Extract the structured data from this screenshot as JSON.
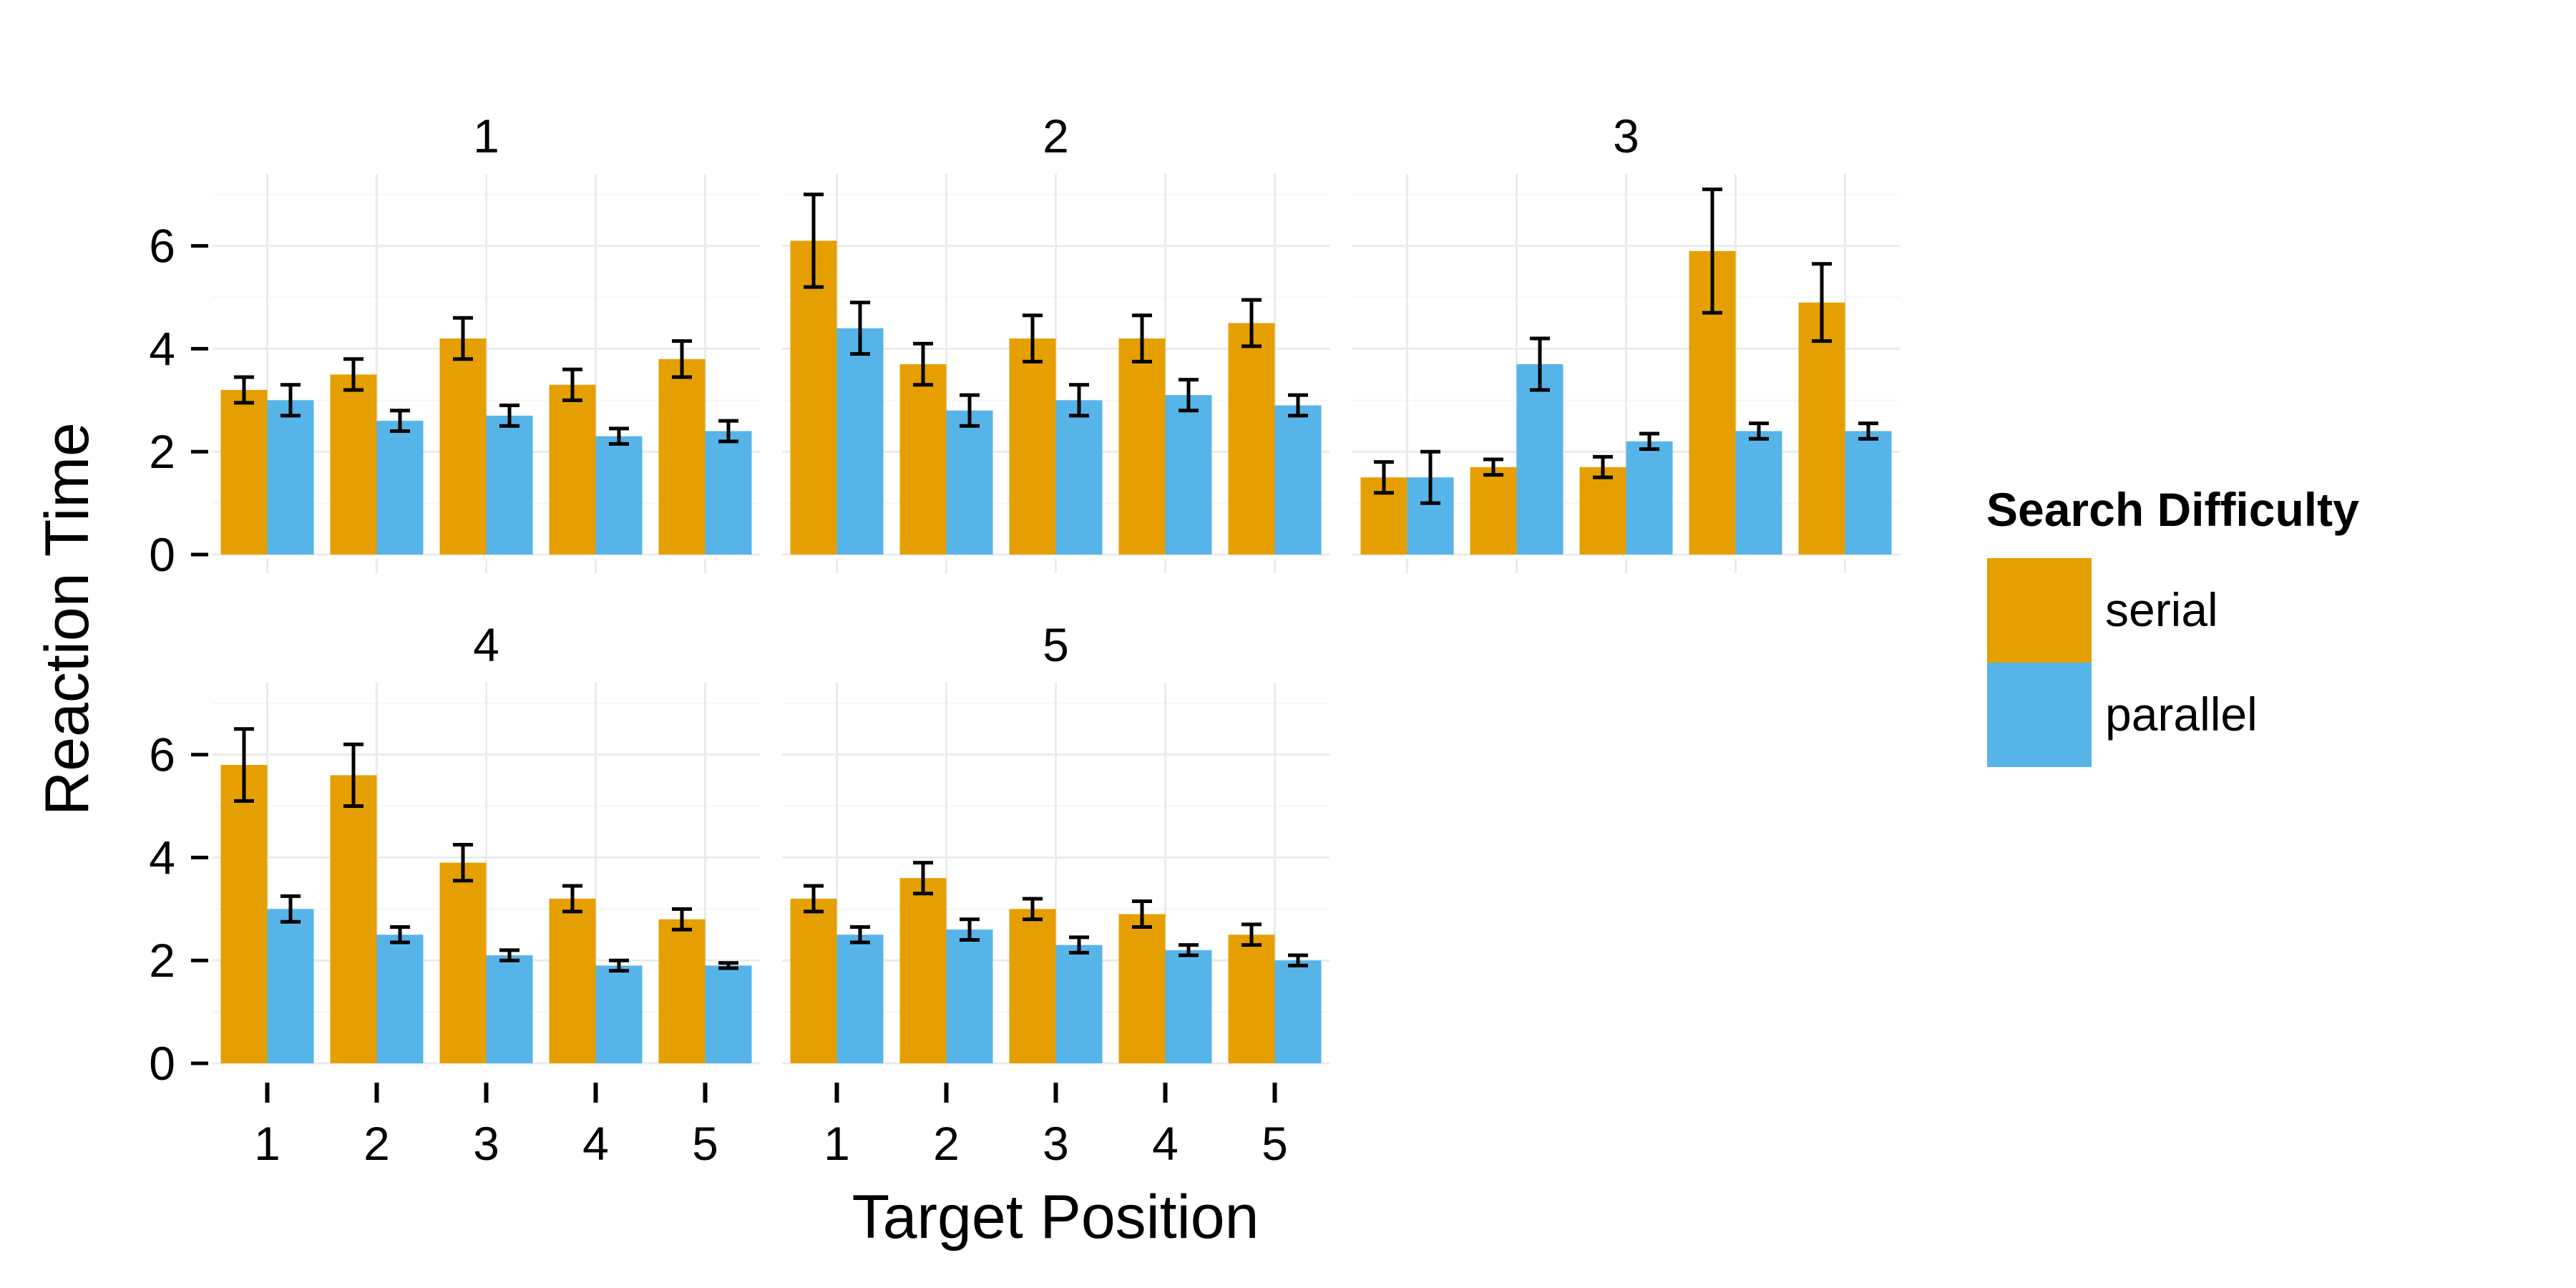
{
  "chart_data": {
    "type": "bar",
    "title": "",
    "xlabel": "Target Position",
    "ylabel": "Reaction Time",
    "ylim": [
      0,
      7.4
    ],
    "yticks": [
      0,
      2,
      4,
      6
    ],
    "ytick_labels": [
      "0",
      "2",
      "4",
      "6"
    ],
    "categories": [
      "1",
      "2",
      "3",
      "4",
      "5"
    ],
    "grid": true,
    "legend": {
      "title": "Search Difficulty",
      "placement": "right",
      "entries": [
        "serial",
        "parallel"
      ]
    },
    "colors": {
      "serial": "#E69F00",
      "parallel": "#56B4E9"
    },
    "panels": [
      {
        "title": "1",
        "series": [
          {
            "name": "serial",
            "values": [
              3.2,
              3.5,
              4.2,
              3.3,
              3.8
            ],
            "errors": [
              0.25,
              0.3,
              0.4,
              0.3,
              0.35
            ]
          },
          {
            "name": "parallel",
            "values": [
              3.0,
              2.6,
              2.7,
              2.3,
              2.4
            ],
            "errors": [
              0.3,
              0.2,
              0.2,
              0.15,
              0.2
            ]
          }
        ]
      },
      {
        "title": "2",
        "series": [
          {
            "name": "serial",
            "values": [
              6.1,
              3.7,
              4.2,
              4.2,
              4.5
            ],
            "errors": [
              0.9,
              0.4,
              0.45,
              0.45,
              0.45
            ]
          },
          {
            "name": "parallel",
            "values": [
              4.4,
              2.8,
              3.0,
              3.1,
              2.9
            ],
            "errors": [
              0.5,
              0.3,
              0.3,
              0.3,
              0.2
            ]
          }
        ]
      },
      {
        "title": "3",
        "series": [
          {
            "name": "serial",
            "values": [
              1.5,
              1.7,
              1.7,
              5.9,
              4.9
            ],
            "errors": [
              0.3,
              0.15,
              0.2,
              1.2,
              0.75
            ]
          },
          {
            "name": "parallel",
            "values": [
              1.5,
              3.7,
              2.2,
              2.4,
              2.4
            ],
            "errors": [
              0.5,
              0.5,
              0.15,
              0.15,
              0.15
            ]
          }
        ]
      },
      {
        "title": "4",
        "series": [
          {
            "name": "serial",
            "values": [
              5.8,
              5.6,
              3.9,
              3.2,
              2.8
            ],
            "errors": [
              0.7,
              0.6,
              0.35,
              0.25,
              0.2
            ]
          },
          {
            "name": "parallel",
            "values": [
              3.0,
              2.5,
              2.1,
              1.9,
              1.9
            ],
            "errors": [
              0.25,
              0.15,
              0.1,
              0.1,
              0.05
            ]
          }
        ]
      },
      {
        "title": "5",
        "series": [
          {
            "name": "serial",
            "values": [
              3.2,
              3.6,
              3.0,
              2.9,
              2.5
            ],
            "errors": [
              0.25,
              0.3,
              0.2,
              0.25,
              0.2
            ]
          },
          {
            "name": "parallel",
            "values": [
              2.5,
              2.6,
              2.3,
              2.2,
              2.0
            ],
            "errors": [
              0.15,
              0.2,
              0.15,
              0.1,
              0.1
            ]
          }
        ]
      }
    ]
  }
}
